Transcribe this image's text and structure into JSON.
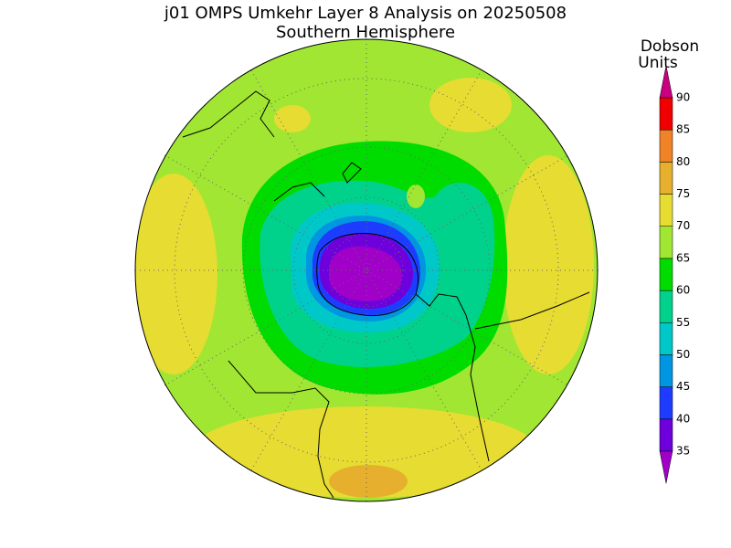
{
  "header": {
    "title": "j01 OMPS Umkehr Layer 8 Analysis on 20250508",
    "subtitle": "Southern Hemisphere"
  },
  "colorbar": {
    "label": [
      "Dobson",
      "Units"
    ],
    "ticks": [
      35,
      40,
      45,
      50,
      55,
      60,
      65,
      70,
      75,
      80,
      85,
      90
    ],
    "colors": [
      "#a000c8",
      "#6e00dc",
      "#1e3cff",
      "#0096e1",
      "#00c8c8",
      "#00d28c",
      "#00dc00",
      "#a0e632",
      "#e6dc32",
      "#e6af2d",
      "#f08228",
      "#f00000",
      "#c8007f"
    ]
  }
}
